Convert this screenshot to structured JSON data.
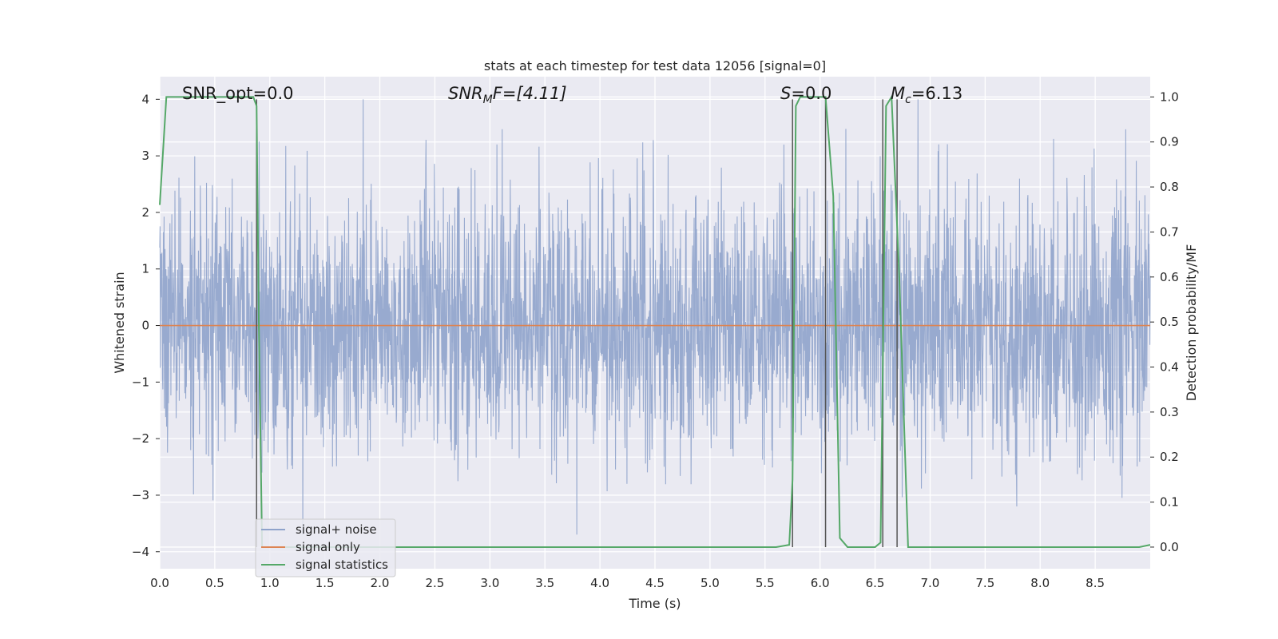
{
  "chart_data": {
    "type": "line",
    "title": "stats at each timestep for test data 12056 [signal=0]",
    "xlabel": "Time (s)",
    "ylabel_left": "Whitened strain",
    "ylabel_right": "Detection probability/MF",
    "xlim": [
      0.0,
      9.0
    ],
    "ylim_left": [
      -4.3,
      4.4
    ],
    "ylim_right": [
      -0.048,
      1.045
    ],
    "xticks": [
      "0.0",
      "0.5",
      "1.0",
      "1.5",
      "2.0",
      "2.5",
      "3.0",
      "3.5",
      "4.0",
      "4.5",
      "5.0",
      "5.5",
      "6.0",
      "6.5",
      "7.0",
      "7.5",
      "8.0",
      "8.5"
    ],
    "yticks_left": [
      "4",
      "3",
      "2",
      "1",
      "0",
      "−1",
      "−2",
      "−3",
      "−4"
    ],
    "yticks_right": [
      "1.0",
      "0.9",
      "0.8",
      "0.7",
      "0.6",
      "0.5",
      "0.4",
      "0.3",
      "0.2",
      "0.1",
      "0.0"
    ],
    "grid": true,
    "legend_placement": "lower-left",
    "annotations": {
      "snr_opt": "SNR_opt=0.0",
      "snr_mf_base": "SNR",
      "snr_mf_sub": "M",
      "snr_mf_rest": "F=[4.11]",
      "s_italic": "S",
      "s_rest": "=0.0",
      "mc_base": "M",
      "mc_sub": "c",
      "mc_rest": "=6.13"
    },
    "series": [
      {
        "name": "signal+ noise",
        "axis": "left",
        "color": "#8fa3cb",
        "amplitude_envelope": {
          "min": -3.9,
          "max": 4.0
        },
        "x_range": [
          0.0,
          9.0
        ]
      },
      {
        "name": "signal only",
        "axis": "left",
        "color": "#dd8452",
        "x": [
          0.0,
          9.0
        ],
        "values": [
          0.0,
          0.0
        ]
      },
      {
        "name": "signal statistics",
        "axis": "right",
        "color": "#55a868",
        "x": [
          0.0,
          0.06,
          0.1,
          0.85,
          0.88,
          0.9,
          0.93,
          1.0,
          5.6,
          5.72,
          5.75,
          5.78,
          5.82,
          6.05,
          6.12,
          6.18,
          6.25,
          6.5,
          6.55,
          6.6,
          6.65,
          6.72,
          6.8,
          8.9,
          9.0
        ],
        "values": [
          0.76,
          1.0,
          1.0,
          1.0,
          0.98,
          0.5,
          0.0,
          0.0,
          0.0,
          0.005,
          0.15,
          0.98,
          1.0,
          1.0,
          0.78,
          0.02,
          0.0,
          0.0,
          0.01,
          0.98,
          1.0,
          0.6,
          0.0,
          0.0,
          0.005
        ]
      }
    ],
    "vertical_markers": [
      0.88,
      5.75,
      6.05,
      6.57,
      6.7
    ]
  },
  "legend": {
    "items": [
      {
        "label": "signal+ noise",
        "color": "#8fa3cb"
      },
      {
        "label": "signal only",
        "color": "#dd8452"
      },
      {
        "label": "signal statistics",
        "color": "#55a868"
      }
    ]
  }
}
